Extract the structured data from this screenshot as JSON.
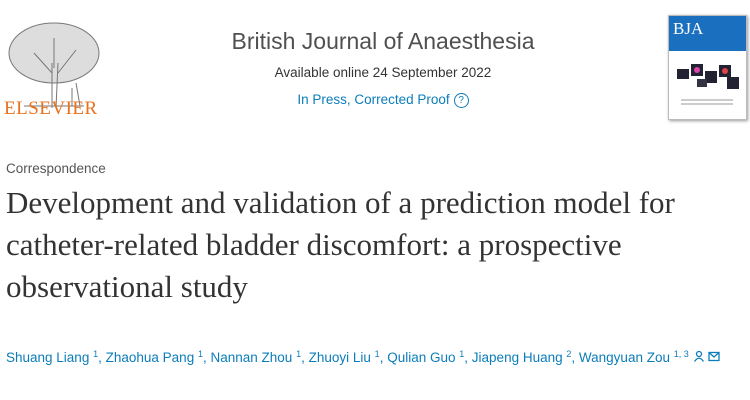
{
  "publisher": {
    "name": "ELSEVIER"
  },
  "journal": {
    "title": "British Journal of Anaesthesia",
    "available": "Available online 24 September 2022",
    "status": "In Press, Corrected Proof",
    "help_glyph": "?",
    "cover_title": "BJA"
  },
  "article": {
    "section": "Correspondence",
    "title": "Development and validation of a prediction model for catheter-related bladder discomfort: a prospective observational study"
  },
  "authors": [
    {
      "name": "Shuang Liang",
      "aff": "1"
    },
    {
      "name": "Zhaohua Pang",
      "aff": "1"
    },
    {
      "name": "Nannan Zhou",
      "aff": "1"
    },
    {
      "name": "Zhuoyi Liu",
      "aff": "1"
    },
    {
      "name": "Qulian Guo",
      "aff": "1"
    },
    {
      "name": "Jiapeng Huang",
      "aff": "2"
    },
    {
      "name": "Wangyuan Zou",
      "aff": "1, 3"
    }
  ],
  "colors": {
    "link": "#0c7dbb",
    "elsevier": "#e9711c",
    "bja": "#1a6fbf"
  }
}
